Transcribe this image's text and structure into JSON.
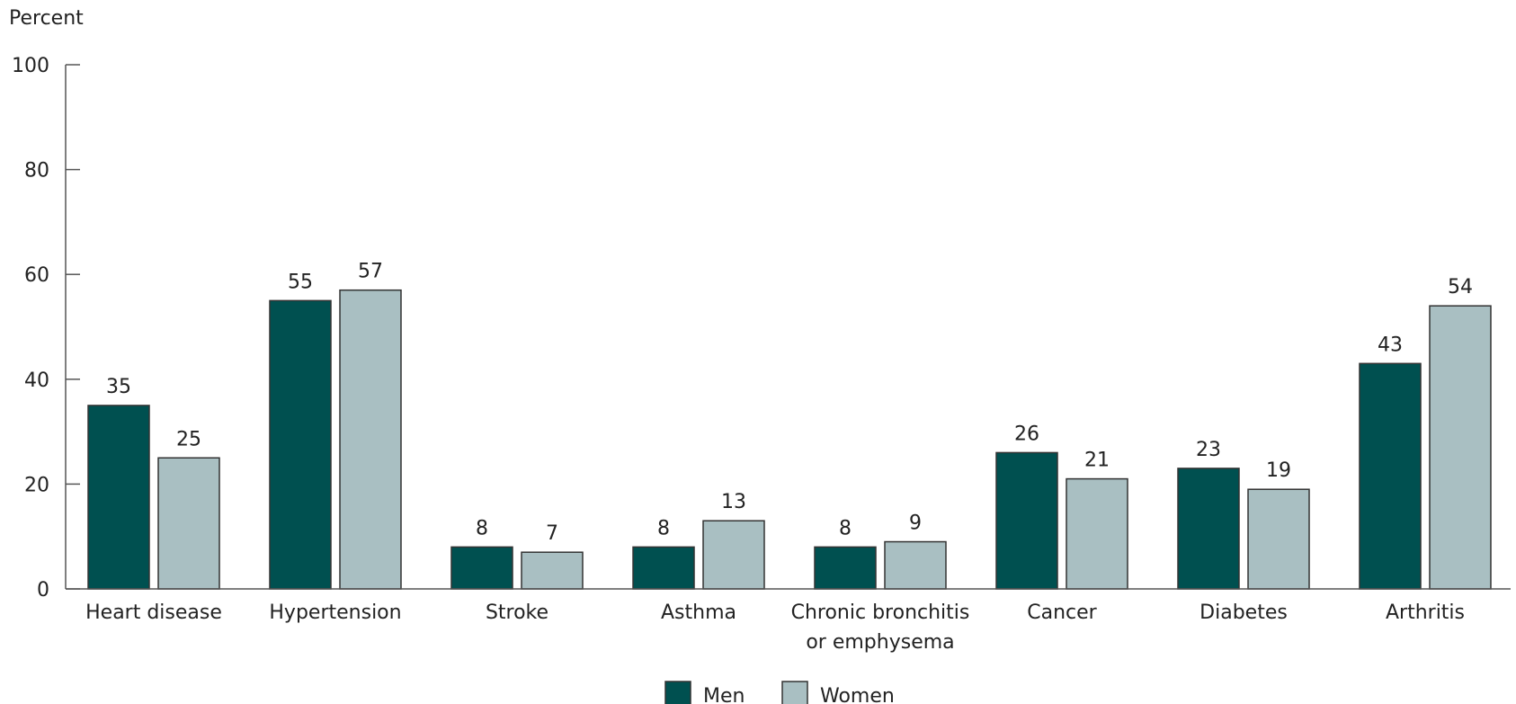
{
  "chart_data": {
    "type": "bar",
    "ylabel": "Percent",
    "ylim": [
      0,
      100
    ],
    "yticks": [
      0,
      20,
      40,
      60,
      80,
      100
    ],
    "categories": [
      [
        "Heart disease"
      ],
      [
        "Hypertension"
      ],
      [
        "Stroke"
      ],
      [
        "Asthma"
      ],
      [
        "Chronic bronchitis",
        "or emphysema"
      ],
      [
        "Cancer"
      ],
      [
        "Diabetes"
      ],
      [
        "Arthritis"
      ]
    ],
    "series": [
      {
        "name": "Men",
        "values": [
          35,
          55,
          8,
          8,
          8,
          26,
          23,
          43
        ],
        "value_labels": [
          "35",
          "55",
          "8",
          "8",
          "8",
          "26",
          "23",
          "43"
        ]
      },
      {
        "name": "Women",
        "values": [
          25,
          57,
          7,
          13,
          9,
          21,
          19,
          54
        ],
        "value_labels": [
          "25",
          "57",
          "7",
          "13",
          "9",
          "21",
          "19",
          "54"
        ]
      }
    ],
    "grid": false,
    "legend": "bottom-center"
  },
  "colors": {
    "men": "#005050",
    "women": "#a9bfc2",
    "stroke": "#333333",
    "axis": "#555555"
  }
}
